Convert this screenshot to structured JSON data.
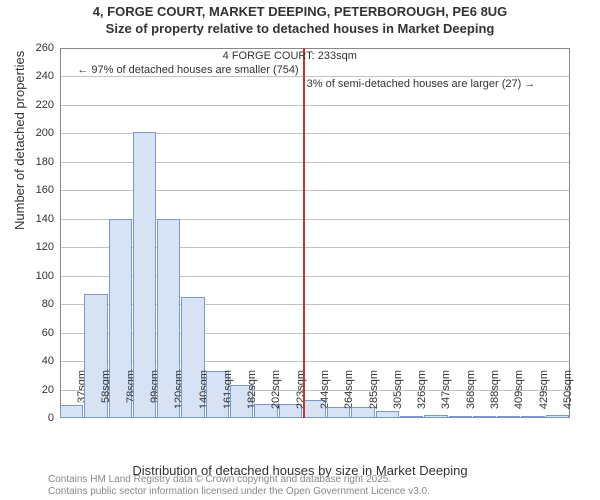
{
  "title_line1": "4, FORGE COURT, MARKET DEEPING, PETERBOROUGH, PE6 8UG",
  "title_line2": "Size of property relative to detached houses in Market Deeping",
  "yaxis_label": "Number of detached properties",
  "xaxis_label": "Distribution of detached houses by size in Market Deeping",
  "footnote_line1": "Contains HM Land Registry data © Crown copyright and database right 2025.",
  "footnote_line2": "Contains public sector information licensed under the Open Government Licence v3.0.",
  "chart": {
    "type": "histogram",
    "ymin": 0,
    "ymax": 260,
    "ytick_step": 20,
    "bar_fill": "#d7e3f4",
    "bar_stroke": "#7a98c9",
    "grid_color": "#888888",
    "background": "#ffffff",
    "title_fontsize": 13,
    "label_fontsize": 13,
    "tick_fontsize": 11,
    "annotation_fontsize": 11,
    "footnote_fontsize": 10,
    "footnote_color": "#888888",
    "categories": [
      "37sqm",
      "58sqm",
      "78sqm",
      "99sqm",
      "120sqm",
      "140sqm",
      "161sqm",
      "182sqm",
      "202sqm",
      "223sqm",
      "244sqm",
      "264sqm",
      "285sqm",
      "305sqm",
      "326sqm",
      "347sqm",
      "368sqm",
      "388sqm",
      "409sqm",
      "429sqm",
      "450sqm"
    ],
    "values": [
      9,
      87,
      140,
      201,
      140,
      85,
      33,
      23,
      10,
      10,
      13,
      8,
      8,
      5,
      1,
      2,
      1,
      0,
      1,
      0,
      2
    ],
    "highlight": {
      "x_value": 233,
      "line_color": "#c83232",
      "line_width": 2,
      "labels": {
        "top": "4 FORGE COURT: 233sqm",
        "left": "← 97% of detached houses are smaller (754)",
        "right": "3% of semi-detached houses are larger (27) →"
      }
    }
  }
}
